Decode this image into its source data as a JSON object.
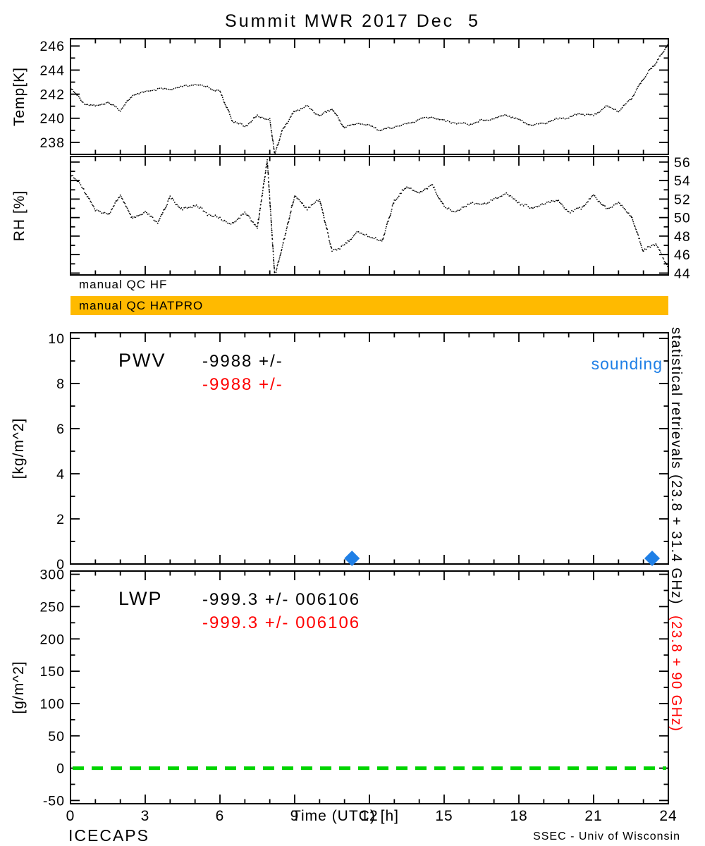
{
  "title": "Summit MWR 2017 Dec  5",
  "colors": {
    "accent_red": "#ff0000",
    "accent_blue": "#1f7fe6",
    "accent_green": "#00d400",
    "qc_orange": "#ffba00"
  },
  "qc": {
    "hf_label": "manual QC HF",
    "hatpro_label": "manual QC HATPRO"
  },
  "pwv": {
    "name": "PWV",
    "value_black": "-9988 +/-",
    "value_red": "-9988 +/-",
    "sounding_label": "sounding"
  },
  "lwp": {
    "name": "LWP",
    "value_black": "-999.3 +/- 006106",
    "value_red": "-999.3 +/- 006106"
  },
  "xaxis": {
    "label": "Time (UTC) [h]",
    "ticks": [
      0,
      3,
      6,
      9,
      12,
      15,
      18,
      21,
      24
    ],
    "lim": [
      0,
      24
    ]
  },
  "right_margin": {
    "black": "statistical retrievals (23.8 + 31.4 GHz)",
    "red": "(23.8 + 90 GHz)"
  },
  "footer": {
    "left": "ICECAPS",
    "right": "SSEC - Univ of Wisconsin"
  },
  "chart_data": [
    {
      "id": "temp",
      "type": "line",
      "line_style": "dotted",
      "ylabel": "Temp[K]",
      "ylim": [
        237.0,
        246.6
      ],
      "yticks": [
        238,
        240,
        242,
        244,
        246
      ],
      "ytick_side": "left",
      "series_color": "#000000",
      "x": [
        0,
        0.5,
        1,
        1.5,
        2,
        2.5,
        3,
        3.5,
        4,
        4.5,
        5,
        5.5,
        6,
        6.5,
        7,
        7.5,
        8,
        8.2,
        8.5,
        9,
        9.5,
        10,
        10.5,
        11,
        11.5,
        12,
        12.5,
        13,
        13.5,
        14,
        14.5,
        15,
        15.5,
        16,
        16.5,
        17,
        17.5,
        18,
        18.5,
        19,
        19.5,
        20,
        20.5,
        21,
        21.5,
        22,
        22.5,
        23,
        23.5,
        24
      ],
      "values": [
        242.6,
        241.3,
        241.0,
        241.3,
        240.7,
        241.9,
        242.2,
        242.4,
        242.4,
        242.6,
        242.8,
        242.6,
        242.2,
        239.8,
        239.3,
        240.2,
        239.9,
        237.0,
        239.0,
        240.6,
        241.0,
        240.2,
        240.8,
        239.2,
        239.6,
        239.4,
        239.0,
        239.3,
        239.5,
        239.9,
        240.1,
        239.8,
        239.6,
        239.5,
        239.8,
        240.0,
        240.3,
        239.9,
        239.4,
        239.6,
        239.9,
        240.1,
        240.4,
        240.2,
        241.0,
        240.6,
        241.6,
        243.3,
        244.6,
        246.2
      ]
    },
    {
      "id": "rh",
      "type": "line",
      "line_style": "dotted",
      "ylabel": "RH [%]",
      "ylim": [
        43.8,
        56.6
      ],
      "yticks": [
        44,
        46,
        48,
        50,
        52,
        54,
        56
      ],
      "ytick_side": "right",
      "series_color": "#000000",
      "x": [
        0,
        0.5,
        1,
        1.5,
        2,
        2.5,
        3,
        3.5,
        4,
        4.5,
        5,
        5.5,
        6,
        6.5,
        7,
        7.5,
        7.9,
        8.2,
        8.5,
        9,
        9.5,
        10,
        10.5,
        11,
        11.5,
        12,
        12.5,
        13,
        13.5,
        14,
        14.5,
        15,
        15.5,
        16,
        16.5,
        17,
        17.5,
        18,
        18.5,
        19,
        19.5,
        20,
        20.5,
        21,
        21.5,
        22,
        22.5,
        23,
        23.5,
        24
      ],
      "values": [
        54.8,
        53.2,
        50.8,
        50.3,
        52.4,
        49.8,
        50.6,
        49.4,
        52.2,
        50.8,
        51.4,
        50.4,
        49.9,
        49.3,
        50.6,
        48.9,
        56.2,
        43.6,
        46.8,
        52.4,
        51.0,
        52.0,
        46.4,
        47.0,
        48.4,
        48.0,
        47.4,
        51.8,
        53.4,
        52.6,
        53.6,
        51.2,
        50.6,
        51.6,
        51.4,
        52.0,
        52.6,
        51.6,
        51.0,
        51.4,
        52.0,
        50.6,
        51.0,
        52.4,
        51.0,
        51.6,
        50.2,
        46.4,
        47.2,
        44.6
      ]
    },
    {
      "id": "pwv",
      "type": "scatter",
      "marker": "diamond",
      "marker_color": "#1f7fe6",
      "ylabel": "[kg/m^2]",
      "ylim": [
        0,
        10.25
      ],
      "yticks": [
        0,
        2,
        4,
        6,
        8,
        10
      ],
      "ytick_side": "left",
      "points": [
        {
          "x": 11.3,
          "y": 0.25
        },
        {
          "x": 23.35,
          "y": 0.25
        }
      ]
    },
    {
      "id": "lwp",
      "type": "line",
      "ylabel": "[g/m^2]",
      "ylim": [
        -55,
        305
      ],
      "yticks": [
        -50,
        0,
        50,
        100,
        150,
        200,
        250,
        300
      ],
      "ytick_side": "left",
      "values": [],
      "reference_line": {
        "y": 0,
        "color": "#00d400",
        "style": "dashed"
      }
    }
  ]
}
